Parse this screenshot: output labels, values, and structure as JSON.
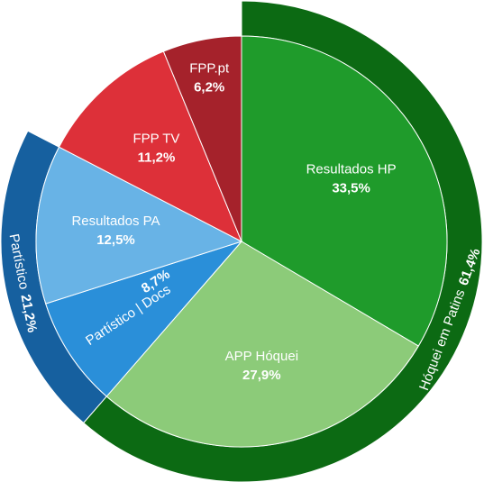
{
  "chart_data": {
    "type": "sunburst",
    "categories": [
      "Resultados HP",
      "APP Hóquei",
      "Partístico | Docs",
      "Resultados PA",
      "FPP TV",
      "FPP.pt"
    ],
    "values": [
      33.5,
      27.9,
      8.7,
      12.5,
      11.2,
      6.2
    ],
    "value_labels": [
      "33,5%",
      "27,9%",
      "8,7%",
      "12,5%",
      "11,2%",
      "6,2%"
    ],
    "colors": [
      "#1f9b2b",
      "#8ccb79",
      "#2a8fd9",
      "#68b3e6",
      "#dd3039",
      "#a5222b"
    ],
    "outer": {
      "categories": [
        "Hóquei em Patins",
        "Partístico"
      ],
      "values": [
        61.4,
        21.2
      ],
      "value_labels": [
        "61,4%",
        "21,2%"
      ],
      "colors": [
        "#0c6a13",
        "#16609f"
      ]
    }
  }
}
